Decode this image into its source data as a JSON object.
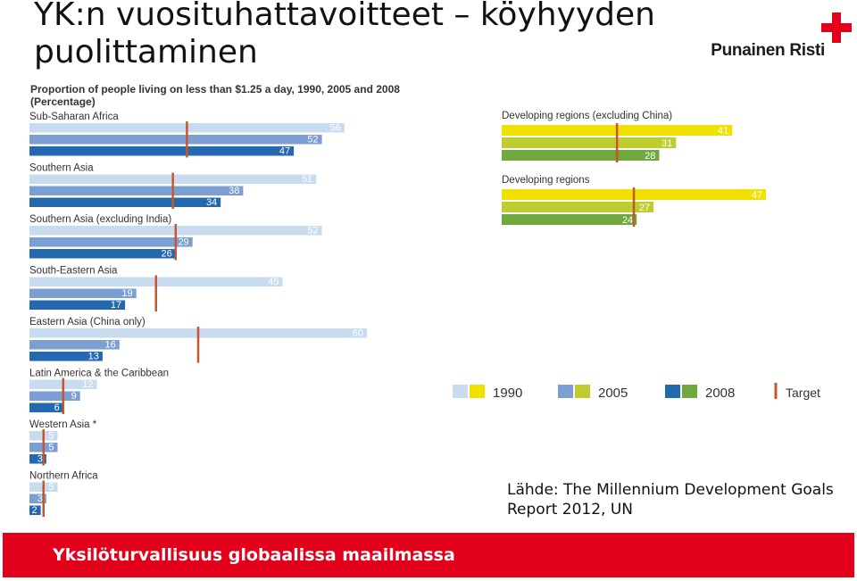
{
  "slide": {
    "title": "YK:n vuosituhattavoitteet – köyhyyden puolittaminen",
    "logo_text": "Punainen Risti",
    "source": "Lähde: The Millennium Development Goals Report 2012, UN",
    "footer": "Yksilöturvallisuus globaalissa maailmassa"
  },
  "colors": {
    "brand_red": "#e2001a",
    "blue_1990": "#c9dcef",
    "blue_2005": "#7b9fd2",
    "blue_2008": "#2468b0",
    "yellow_1990": "#f0e100",
    "yellow_2005": "#bfcc2e",
    "green_2008": "#6fa83e",
    "target": "#c8562c"
  },
  "chart_data": {
    "type": "bar",
    "title": "Proportion of people living on less than $1.25 a day, 1990, 2005 and 2008",
    "subtitle": "(Percentage)",
    "legend": [
      "1990",
      "2005",
      "2008",
      "Target"
    ],
    "legend_position": "bottom-right",
    "panels": [
      {
        "name": "regions",
        "categories": [
          "Sub-Saharan Africa",
          "Southern Asia",
          "Southern Asia (excluding India)",
          "South-Eastern Asia",
          "Eastern Asia (China only)",
          "Latin America & the Caribbean",
          "Western Asia *",
          "Northern Africa"
        ],
        "series": [
          {
            "name": "1990",
            "values": [
              56,
              51,
              52,
              45,
              60,
              12,
              5,
              5
            ]
          },
          {
            "name": "2005",
            "values": [
              52,
              38,
              29,
              19,
              16,
              9,
              5,
              3
            ]
          },
          {
            "name": "2008",
            "values": [
              47,
              34,
              26,
              17,
              13,
              6,
              3,
              2
            ]
          }
        ],
        "target": [
          28,
          25.5,
          26,
          22.5,
          30,
          6,
          2.5,
          2.5
        ]
      },
      {
        "name": "aggregates",
        "categories": [
          "Developing regions (excluding China)",
          "Developing regions"
        ],
        "series": [
          {
            "name": "1990",
            "values": [
              41,
              47
            ]
          },
          {
            "name": "2005",
            "values": [
              31,
              27
            ]
          },
          {
            "name": "2008",
            "values": [
              28,
              24
            ]
          }
        ],
        "target": [
          20.5,
          23.5
        ]
      }
    ]
  }
}
